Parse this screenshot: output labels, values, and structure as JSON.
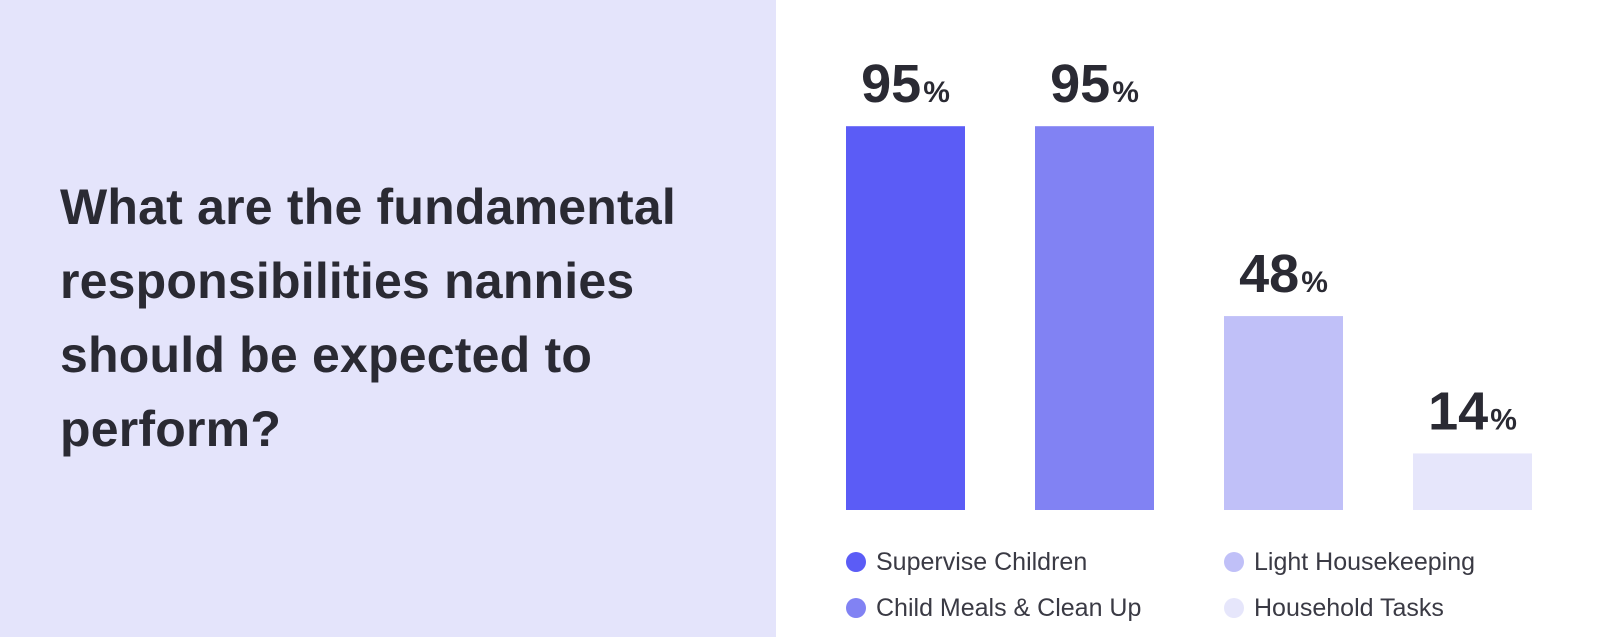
{
  "question": "What are the fundamental responsibilities nannies should be expected to perform?",
  "chart_data": {
    "type": "bar",
    "categories": [
      "Supervise Children",
      "Child Meals & Clean Up",
      "Light Housekeeping",
      "Household Tasks"
    ],
    "values": [
      95,
      95,
      48,
      14
    ],
    "value_labels": [
      "95",
      "95",
      "48",
      "14"
    ],
    "unit": "%",
    "colors": [
      "#5b5cf6",
      "#8182f3",
      "#c0c0f8",
      "#e6e6fb"
    ],
    "ylim": [
      0,
      100
    ],
    "grid": false,
    "legend": {
      "position": "bottom",
      "columns": 2
    },
    "title": "",
    "xlabel": "",
    "ylabel": ""
  }
}
